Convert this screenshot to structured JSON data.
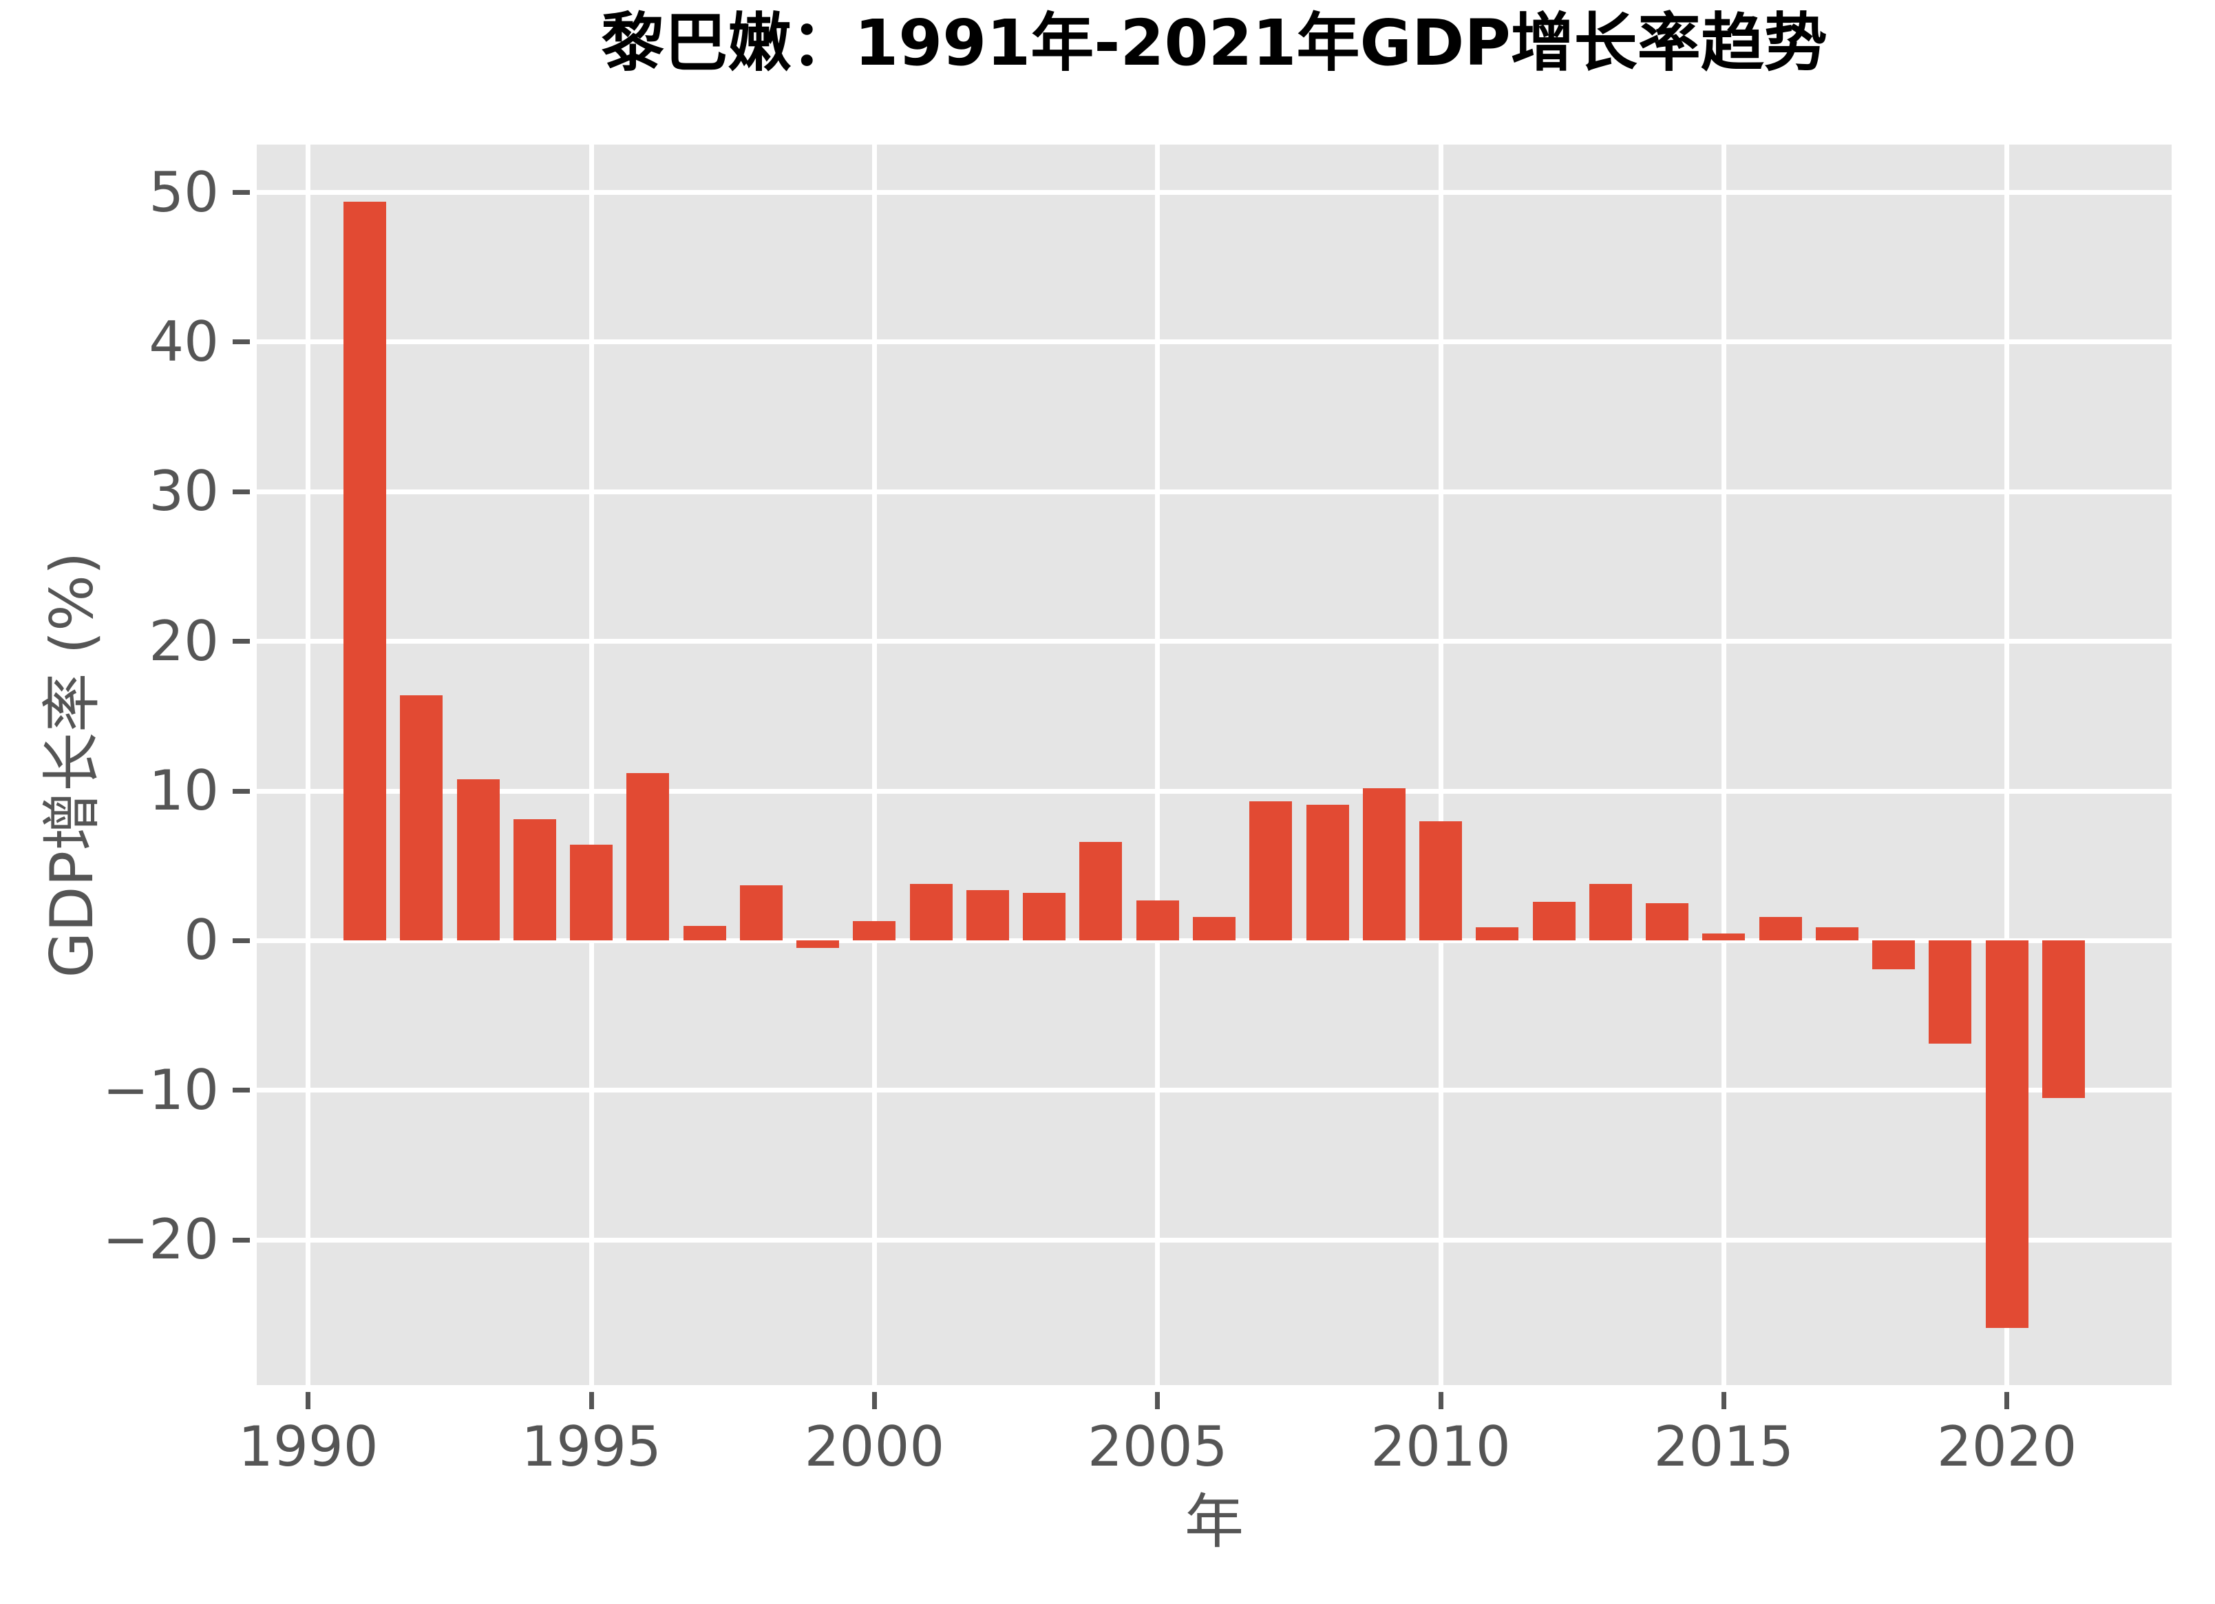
{
  "chart_data": {
    "type": "bar",
    "title": "黎巴嫩：1991年-2021年GDP增长率趋势",
    "xlabel": "年",
    "ylabel": "GDP增长率 (%)",
    "x": [
      1991,
      1992,
      1993,
      1994,
      1995,
      1996,
      1997,
      1998,
      1999,
      2000,
      2001,
      2002,
      2003,
      2004,
      2005,
      2006,
      2007,
      2008,
      2009,
      2010,
      2011,
      2012,
      2013,
      2014,
      2015,
      2016,
      2017,
      2018,
      2019,
      2020,
      2021
    ],
    "values": [
      49.4,
      16.4,
      10.8,
      8.1,
      6.4,
      11.2,
      1.0,
      3.7,
      -0.5,
      1.3,
      3.8,
      3.4,
      3.2,
      6.6,
      2.7,
      1.6,
      9.3,
      9.1,
      10.2,
      8.0,
      0.9,
      2.6,
      3.8,
      2.5,
      0.5,
      1.6,
      0.9,
      -1.9,
      -6.9,
      -25.9,
      -10.5
    ],
    "x_ticks": [
      1990,
      1995,
      2000,
      2005,
      2010,
      2015,
      2020
    ],
    "y_ticks": [
      -20,
      -10,
      0,
      10,
      20,
      30,
      40,
      50
    ],
    "xlim": [
      1989.09,
      2022.91
    ],
    "ylim": [
      -29.7,
      53.2
    ],
    "grid": true,
    "legend": null,
    "colors": {
      "bar": "#E24A33",
      "plot_bg": "#E5E5E5",
      "grid": "#FFFFFF",
      "tick_mark": "#555555",
      "tick_label": "#555555",
      "axis_label": "#555555",
      "title": "#000000",
      "figure_bg": "#FFFFFF"
    }
  }
}
